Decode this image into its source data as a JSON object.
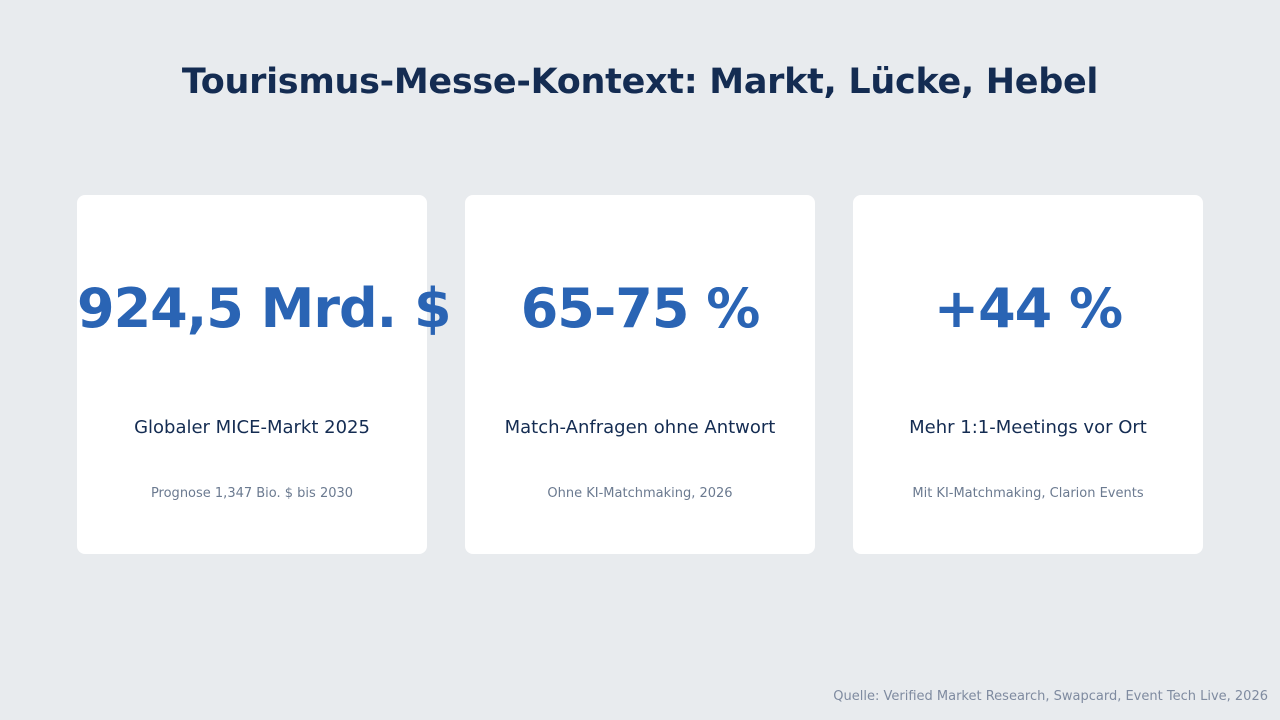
{
  "title": "Tourismus-Messe-Kontext: Markt, Lücke, Hebel",
  "cards": [
    {
      "value": "924,5 Mrd. $",
      "label": "Globaler MICE-Markt 2025",
      "note": "Prognose 1,347 Bio. $ bis 2030"
    },
    {
      "value": "65-75 %",
      "label": "Match-Anfragen ohne Antwort",
      "note": "Ohne KI-Matchmaking, 2026"
    },
    {
      "value": "+44 %",
      "label": "Mehr 1:1-Meetings vor Ort",
      "note": "Mit KI-Matchmaking, Clarion Events"
    }
  ],
  "source": "Quelle: Verified Market Research, Swapcard, Event Tech Live, 2026",
  "colors": {
    "background": "#e8ebee",
    "title": "#142c52",
    "accent": "#2a64b4",
    "muted": "#6b7a90"
  }
}
